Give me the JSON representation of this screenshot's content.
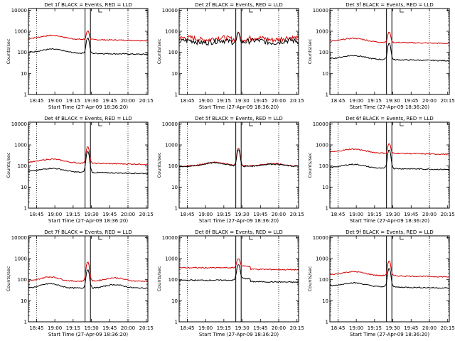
{
  "chart_data": {
    "type": "line",
    "yscale": "log",
    "ylim": [
      1,
      12000
    ],
    "y_ticks": [
      1,
      10,
      100,
      1000,
      10000
    ],
    "y_tick_labels": [
      "1",
      "10",
      "100",
      "1000",
      "10000"
    ],
    "x_ticks": [
      "18:45",
      "19:00",
      "19:15",
      "19:30",
      "19:45",
      "20:00",
      "20:15"
    ],
    "dotted_gridlines_at": [
      "18:45",
      "20:00"
    ],
    "ylabel": "Counts/sec",
    "xlabel": "Start Time (27-Apr-09 18:36:20)",
    "series_colors": {
      "events": "#000000",
      "lld": "#d40000"
    },
    "panels": [
      {
        "title": "Det 1f BLACK = Events, RED = LLD",
        "events_base": 100,
        "events_peak": 500,
        "lld_base": 450,
        "lld_peak": 1100,
        "hump": "morning"
      },
      {
        "title": "Det 2f BLACK = Events, RED = LLD",
        "events_base": 330,
        "events_peak": 850,
        "lld_base": 450,
        "lld_peak": 900,
        "hump": "noisy"
      },
      {
        "title": "Det 3f BLACK = Events, RED = LLD",
        "events_base": 50,
        "events_peak": 280,
        "lld_base": 330,
        "lld_peak": 950,
        "hump": "morning"
      },
      {
        "title": "Det 4f BLACK = Events, RED = LLD",
        "events_base": 55,
        "events_peak": 500,
        "lld_base": 150,
        "lld_peak": 850,
        "hump": "morning"
      },
      {
        "title": "Det 5f BLACK = Events, RED = LLD",
        "events_base": 95,
        "events_peak": 600,
        "lld_base": 100,
        "lld_peak": 700,
        "hump": "wave"
      },
      {
        "title": "Det 6f BLACK = Events, RED = LLD",
        "events_base": 85,
        "events_peak": 600,
        "lld_base": 450,
        "lld_peak": 1200,
        "hump": "morning"
      },
      {
        "title": "Det 7f BLACK = Events, RED = LLD",
        "events_base": 40,
        "events_peak": 300,
        "lld_base": 85,
        "lld_peak": 700,
        "hump": "double"
      },
      {
        "title": "Det 8f BLACK = Events, RED = LLD",
        "events_base": 90,
        "events_peak": 500,
        "lld_base": 350,
        "lld_peak": 900,
        "hump": "step"
      },
      {
        "title": "Det 9f BLACK = Events, RED = LLD",
        "events_base": 50,
        "events_peak": 350,
        "lld_base": 170,
        "lld_peak": 800,
        "hump": "morning"
      }
    ]
  }
}
